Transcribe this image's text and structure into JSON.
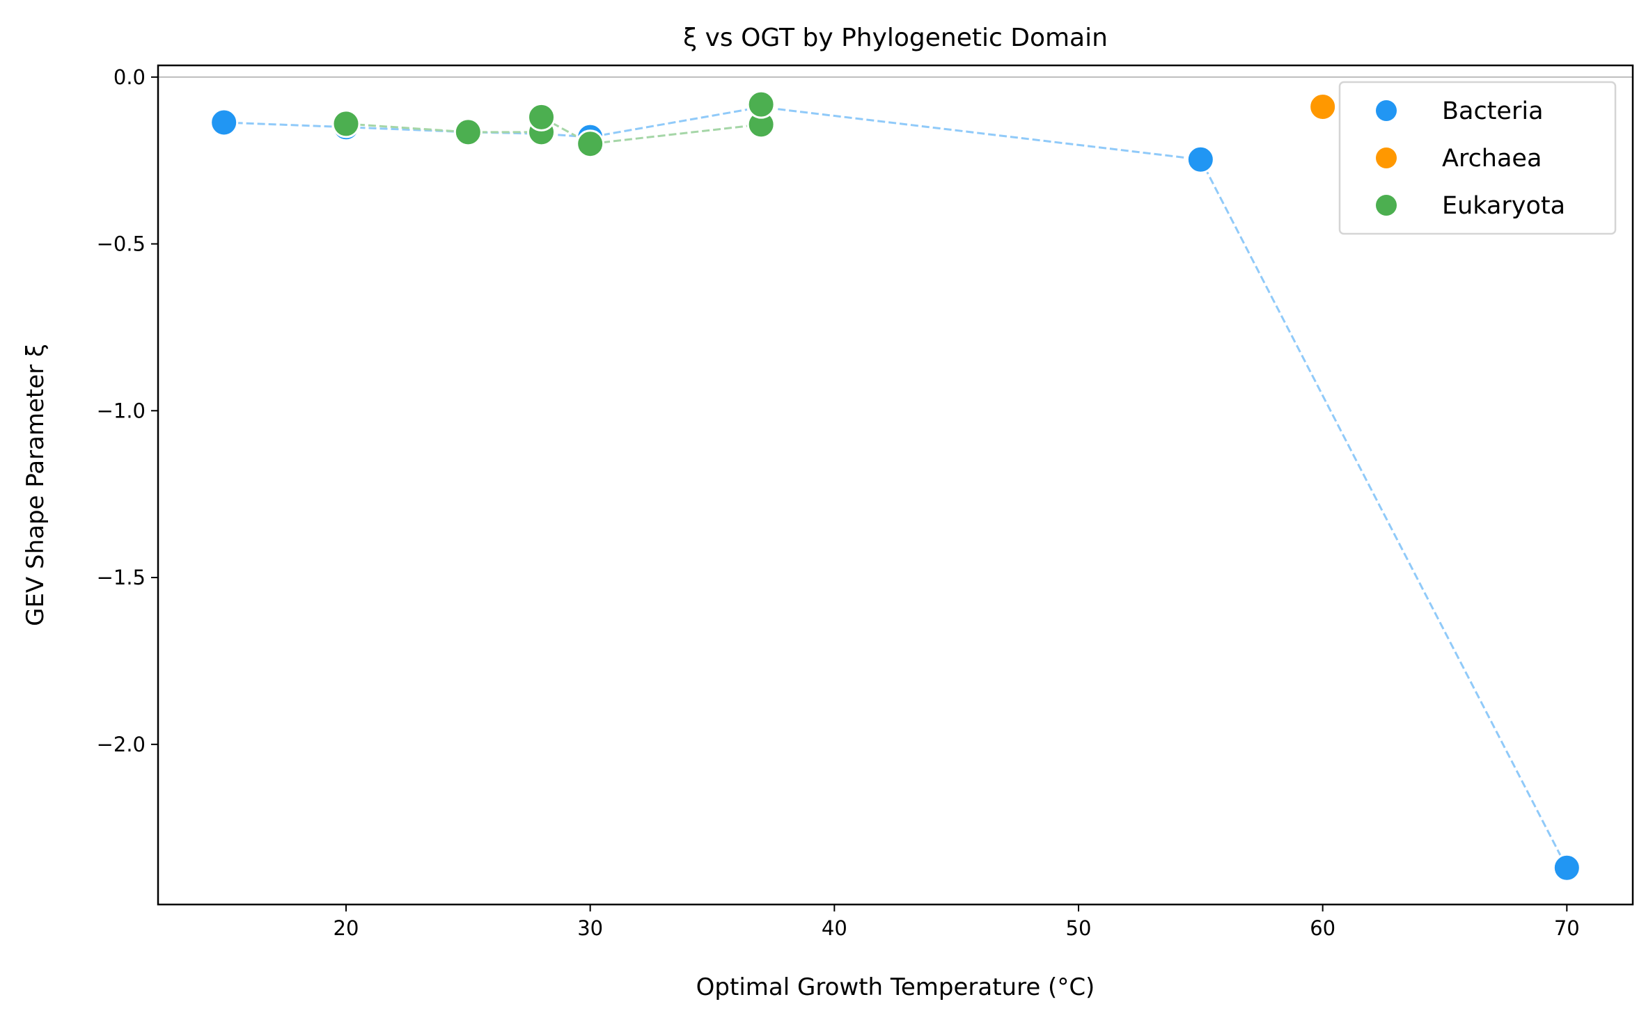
{
  "chart_data": {
    "type": "scatter",
    "title": "ξ vs OGT by Phylogenetic Domain",
    "xlabel": "Optimal Growth Temperature (°C)",
    "ylabel": "GEV Shape Parameter ξ",
    "xlim": [
      12.3,
      72.7
    ],
    "ylim": [
      -2.48,
      0.035
    ],
    "xticks": [
      20,
      30,
      40,
      50,
      60,
      70
    ],
    "xtick_labels": [
      "20",
      "30",
      "40",
      "50",
      "60",
      "70"
    ],
    "yticks": [
      0.0,
      -0.5,
      -1.0,
      -1.5,
      -2.0
    ],
    "ytick_labels": [
      "0.0",
      "−0.5",
      "−1.0",
      "−1.5",
      "−2.0"
    ],
    "grid": false,
    "reference_line_y": 0,
    "legend_position": "top-right",
    "series": [
      {
        "name": "Bacteria",
        "color": "#2196F3",
        "line_color": "#90CAF9",
        "points": [
          [
            15,
            -0.136
          ],
          [
            20,
            -0.15
          ],
          [
            25,
            -0.165
          ],
          [
            28,
            -0.17
          ],
          [
            30,
            -0.18
          ],
          [
            37,
            -0.09
          ],
          [
            55,
            -0.247
          ],
          [
            70,
            -2.37
          ]
        ]
      },
      {
        "name": "Archaea",
        "color": "#FF9800",
        "line_color": "#FFCC80",
        "points": [
          [
            60,
            -0.089
          ]
        ]
      },
      {
        "name": "Eukaryota",
        "color": "#4CAF50",
        "line_color": "#A5D6A7",
        "points": [
          [
            20,
            -0.14
          ],
          [
            25,
            -0.165
          ],
          [
            28,
            -0.165
          ],
          [
            28,
            -0.12
          ],
          [
            30,
            -0.2
          ],
          [
            37,
            -0.142
          ],
          [
            37,
            -0.082
          ]
        ]
      }
    ]
  }
}
